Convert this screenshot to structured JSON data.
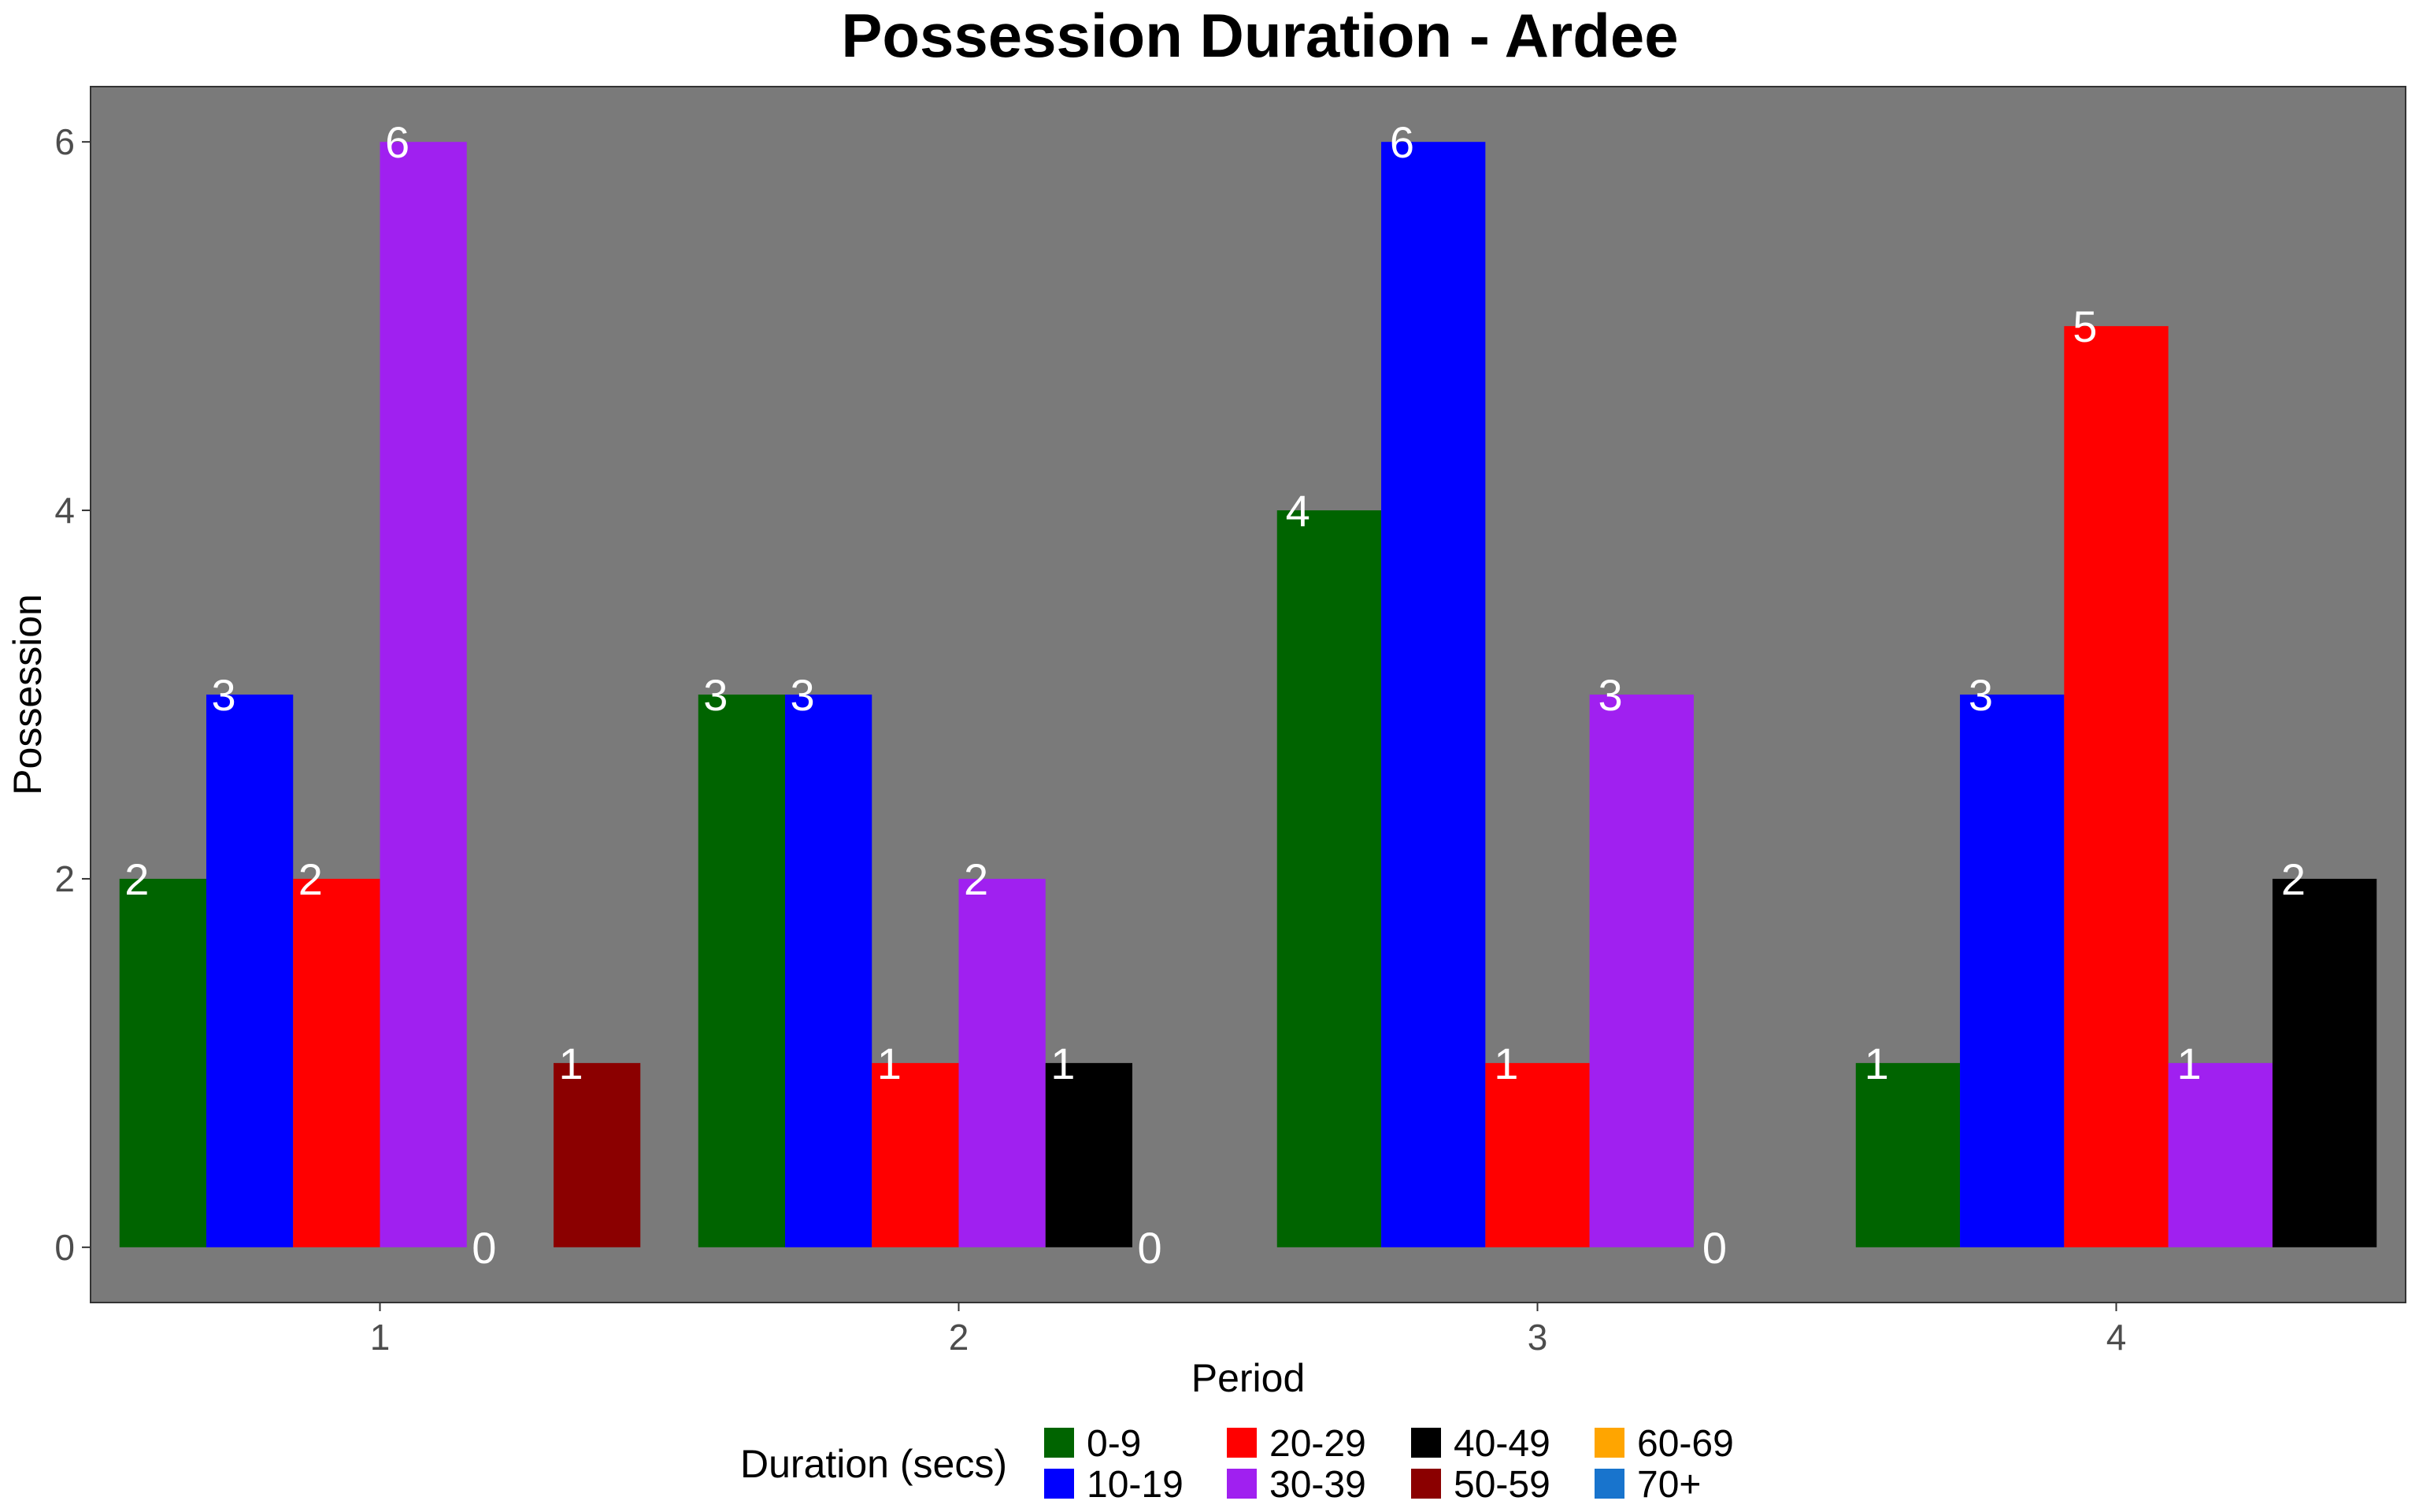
{
  "chart_data": {
    "type": "bar",
    "title": "Possession Duration - Ardee",
    "xlabel": "Period",
    "ylabel": "Possession",
    "categories": [
      "1",
      "2",
      "3",
      "4"
    ],
    "ylim": [
      -0.3,
      6.3
    ],
    "yticks": [
      0,
      2,
      4,
      6
    ],
    "grid": false,
    "legend": {
      "title": "Duration (secs)",
      "position": "bottom",
      "entries": [
        "0-9",
        "10-19",
        "20-29",
        "30-39",
        "40-49",
        "50-59",
        "60-69",
        "70+"
      ]
    },
    "series": [
      {
        "name": "0-9",
        "color": "#006400",
        "values": [
          2,
          3,
          4,
          1
        ]
      },
      {
        "name": "10-19",
        "color": "#0000ff",
        "values": [
          3,
          3,
          6,
          3
        ]
      },
      {
        "name": "20-29",
        "color": "#ff0000",
        "values": [
          2,
          1,
          1,
          5
        ]
      },
      {
        "name": "30-39",
        "color": "#a020f0",
        "values": [
          6,
          2,
          3,
          1
        ]
      },
      {
        "name": "40-49",
        "color": "#000000",
        "values": [
          0,
          1,
          0,
          2
        ]
      },
      {
        "name": "50-59",
        "color": "#8b0000",
        "values": [
          1,
          0,
          null,
          null
        ]
      },
      {
        "name": "60-69",
        "color": "#ffa500",
        "values": [
          null,
          null,
          null,
          null
        ]
      },
      {
        "name": "70+",
        "color": "#1874cd",
        "values": [
          null,
          null,
          null,
          null
        ]
      }
    ],
    "colors": {
      "panel_background": "#7a7a7a",
      "panel_border": "#333333",
      "bar_label": "#ffffff"
    }
  }
}
